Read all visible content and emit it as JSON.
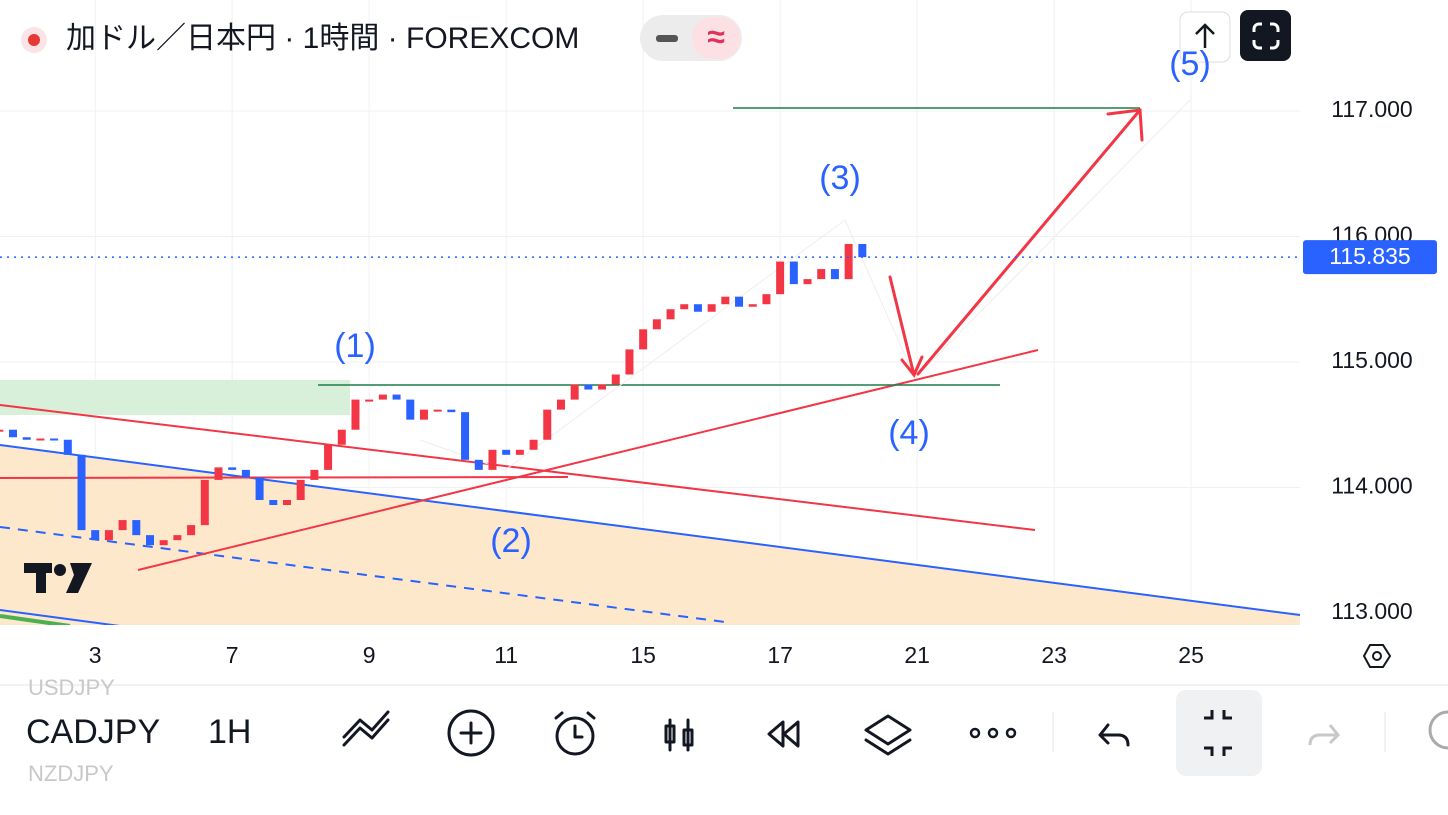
{
  "header": {
    "title": "加ドル／日本円 · 1時間 · FOREXCOM"
  },
  "chart_data": {
    "type": "candlestick",
    "up_color": "#f23645",
    "down_color": "#2962ff",
    "x": [
      -1.4,
      -1.2,
      -1,
      -0.8,
      -0.6,
      -0.4,
      -0.2,
      0,
      0.2,
      0.4,
      0.6,
      0.8,
      1,
      1.2,
      1.4,
      1.6,
      1.8,
      2,
      2.2,
      2.4,
      2.6,
      2.8,
      3,
      3.2,
      3.4,
      3.6,
      3.8,
      4,
      4.2,
      4.4,
      4.6,
      4.8,
      5,
      5.2,
      5.4,
      5.6,
      5.8,
      6,
      6.2,
      6.4,
      6.6,
      6.8,
      7,
      7.2,
      7.4,
      7.6,
      7.8,
      8,
      8.2,
      8.4,
      8.6,
      8.8,
      9,
      9.2,
      9.4,
      9.6,
      9.8,
      10,
      10.2,
      10.4,
      10.6,
      10.8,
      11,
      11.2
    ],
    "close": [
      114.46,
      114.4,
      114.38,
      114.39,
      114.38,
      114.26,
      113.66,
      113.58,
      113.66,
      113.74,
      113.62,
      113.54,
      113.58,
      113.62,
      113.7,
      114.06,
      114.16,
      114.14,
      114.08,
      113.9,
      113.86,
      113.9,
      114.06,
      114.14,
      114.34,
      114.46,
      114.7,
      114.7,
      114.74,
      114.7,
      114.54,
      114.62,
      114.62,
      114.6,
      114.22,
      114.14,
      114.3,
      114.26,
      114.3,
      114.38,
      114.62,
      114.7,
      114.82,
      114.78,
      114.82,
      114.9,
      115.1,
      115.26,
      115.34,
      115.42,
      115.46,
      115.4,
      115.46,
      115.52,
      115.44,
      115.46,
      115.54,
      115.8,
      115.62,
      115.66,
      115.74,
      115.66,
      115.94,
      115.835
    ],
    "last_price": {
      "value": 115.835,
      "label": "115.835"
    },
    "xlim": [
      -1.39,
      17.59
    ],
    "ylim": [
      112.904,
      117.884
    ],
    "xticks": [
      {
        "value": 0,
        "label": "3"
      },
      {
        "value": 2,
        "label": "7"
      },
      {
        "value": 4,
        "label": "9"
      },
      {
        "value": 6,
        "label": "11"
      },
      {
        "value": 8,
        "label": "15"
      },
      {
        "value": 10,
        "label": "17"
      },
      {
        "value": 12,
        "label": "21"
      },
      {
        "value": 14,
        "label": "23"
      },
      {
        "value": 16,
        "label": "25"
      }
    ],
    "yticks": [
      {
        "value": 113,
        "label": "113.000"
      },
      {
        "value": 114,
        "label": "114.000"
      },
      {
        "value": 115,
        "label": "115.000"
      },
      {
        "value": 116,
        "label": "116.000"
      },
      {
        "value": 117,
        "label": "117.000"
      }
    ],
    "grid": true,
    "annotations": [
      "(1)",
      "(2)",
      "(3)",
      "(4)",
      "(5)"
    ]
  },
  "toolbar": {
    "symbol": "CADJPY",
    "interval": "1H",
    "prev_symbol": "USDJPY",
    "next_symbol": "NZDJPY"
  }
}
